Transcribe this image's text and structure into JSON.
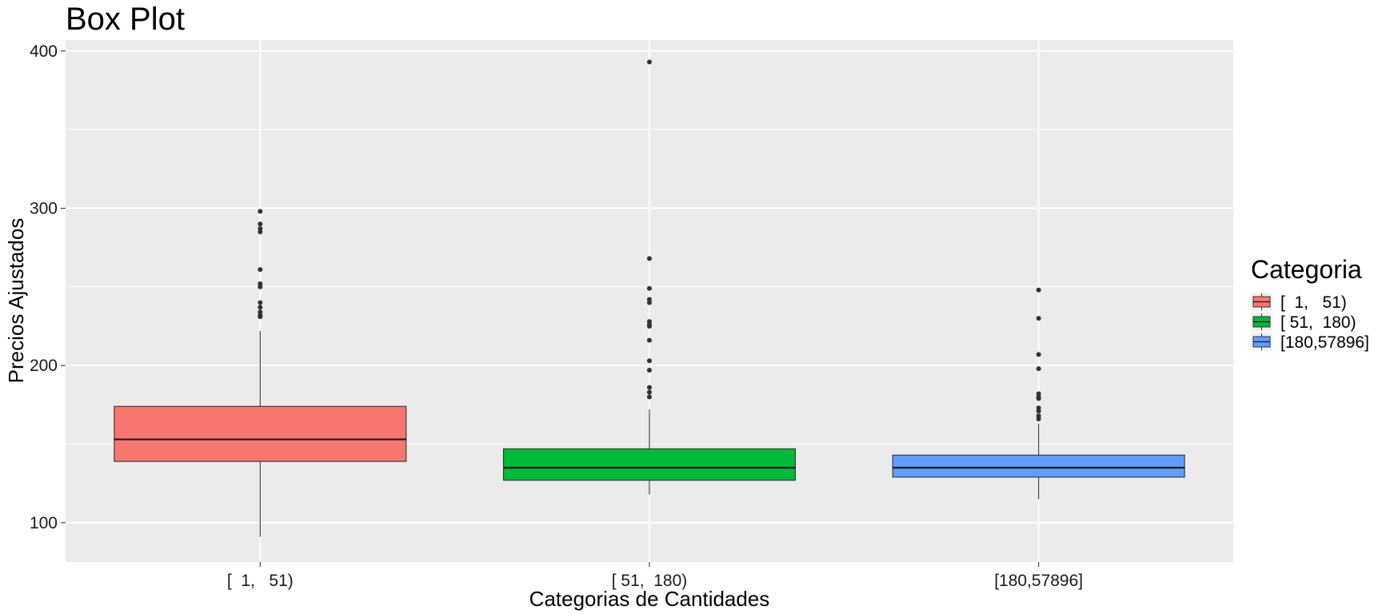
{
  "chart_data": {
    "type": "box",
    "title": "Box Plot",
    "xlabel": "Categorias de Cantidades",
    "ylabel": "Precios Ajustados",
    "ylim": [
      75,
      407
    ],
    "yticks": [
      100,
      200,
      300,
      400
    ],
    "grid": true,
    "legend": {
      "title": "Categoria",
      "position": "right"
    },
    "categories": [
      "[  1,   51)",
      "[ 51,  180)",
      "[180,57896]"
    ],
    "colors": [
      "#F8766D",
      "#00BA38",
      "#619CFF"
    ],
    "boxes": [
      {
        "category": "[  1,   51)",
        "whisker_low": 91,
        "q1": 139,
        "median": 153,
        "q3": 174,
        "whisker_high": 222,
        "outliers": [
          298,
          290,
          287,
          285,
          261,
          252,
          250,
          240,
          237,
          234,
          232,
          231
        ]
      },
      {
        "category": "[ 51,  180)",
        "whisker_low": 118,
        "q1": 127,
        "median": 135,
        "q3": 147,
        "whisker_high": 172,
        "outliers": [
          393,
          268,
          249,
          242,
          240,
          228,
          226,
          225,
          216,
          203,
          197,
          186,
          183,
          180
        ]
      },
      {
        "category": "[180,57896]",
        "whisker_low": 115,
        "q1": 129,
        "median": 135,
        "q3": 143,
        "whisker_high": 163,
        "outliers": [
          248,
          230,
          207,
          198,
          182,
          180,
          179,
          173,
          171,
          168,
          166
        ]
      }
    ]
  }
}
